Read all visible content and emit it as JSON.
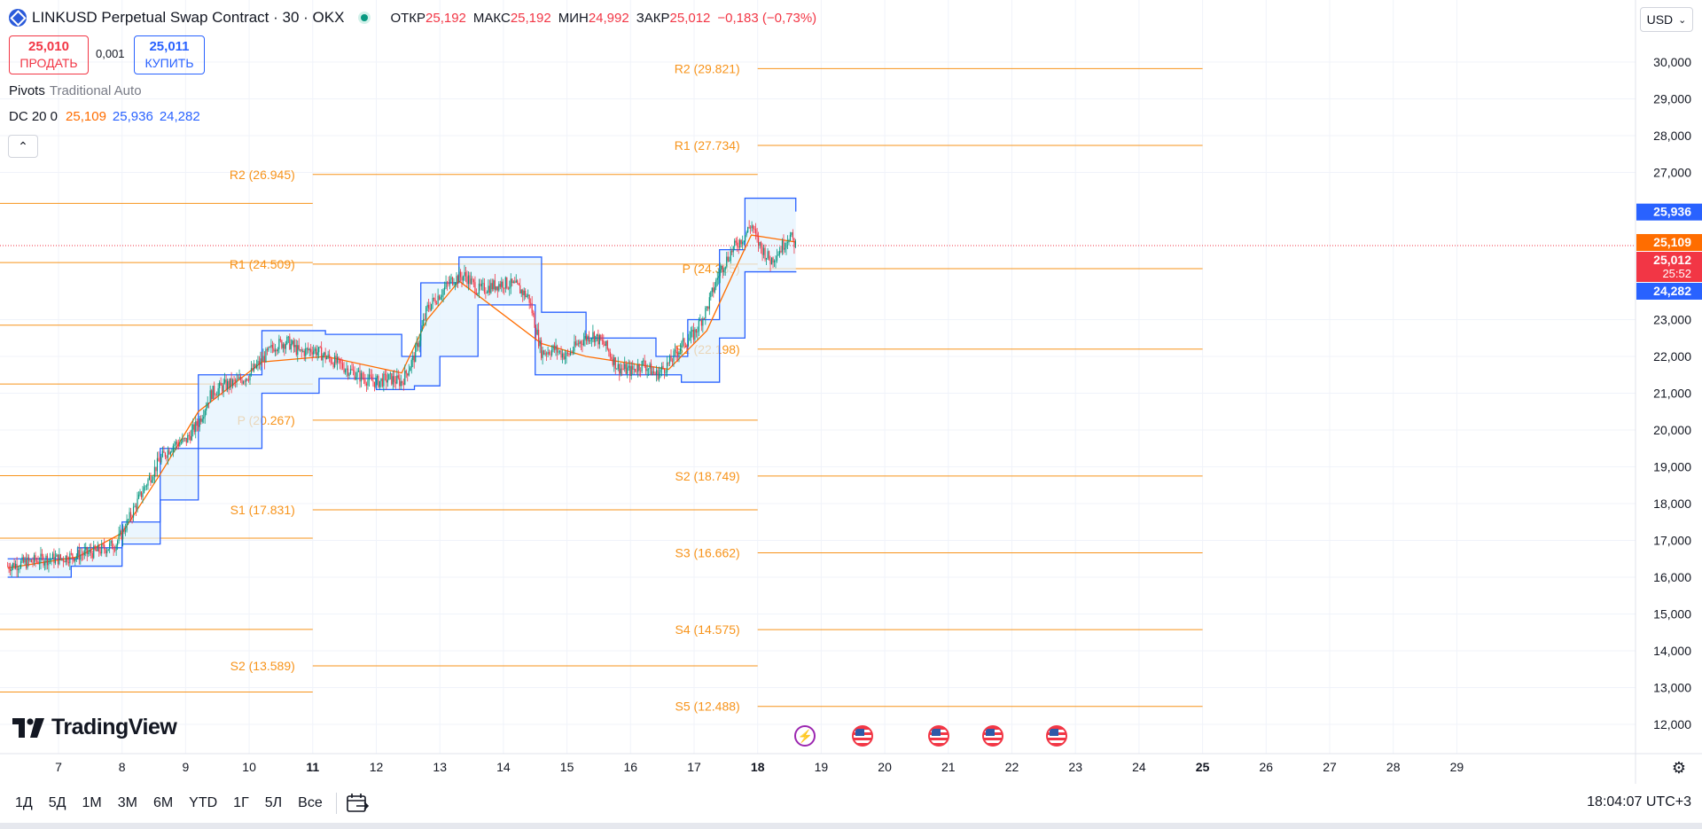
{
  "header": {
    "symbol": "LINKUSD Perpetual Swap Contract · 30 · OKX",
    "open_label": "ОТКР",
    "open": "25,192",
    "high_label": "МАКС",
    "high": "25,192",
    "low_label": "МИН",
    "low": "24,992",
    "close_label": "ЗАКР",
    "close": "25,012",
    "change": "−0,183 (−0,73%)"
  },
  "trade": {
    "sell_price": "25,010",
    "sell_label": "ПРОДАТЬ",
    "spread": "0,001",
    "buy_price": "25,011",
    "buy_label": "КУПИТЬ"
  },
  "indicators": {
    "pivots_name": "Pivots",
    "pivots_params": "Traditional Auto",
    "dc_name": "DC 20 0",
    "dc_mid": "25,109",
    "dc_upper": "25,936",
    "dc_lower": "24,282"
  },
  "currency": "USD",
  "logo_text": "TradingView",
  "ranges": [
    "1Д",
    "5Д",
    "1М",
    "3М",
    "6М",
    "YTD",
    "1Г",
    "5Л",
    "Все"
  ],
  "clock": "18:04:07 UTC+3",
  "colors": {
    "up": "#089981",
    "down": "#f23645",
    "pivot": "#f7931a",
    "channel": "#2962ff",
    "mid": "#ff6d00",
    "fill": "#e3f2fd"
  },
  "chart_data": {
    "type": "line",
    "title": "LINKUSD Perpetual Swap Contract · 30 · OKX",
    "y_range": [
      11.5,
      30.6
    ],
    "y_ticks": [
      {
        "v": 30,
        "t": "30,000"
      },
      {
        "v": 29,
        "t": "29,000"
      },
      {
        "v": 28,
        "t": "28,000"
      },
      {
        "v": 27,
        "t": "27,000"
      },
      {
        "v": 23,
        "t": "23,000"
      },
      {
        "v": 22,
        "t": "22,000"
      },
      {
        "v": 21,
        "t": "21,000"
      },
      {
        "v": 20,
        "t": "20,000"
      },
      {
        "v": 19,
        "t": "19,000"
      },
      {
        "v": 18,
        "t": "18,000"
      },
      {
        "v": 17,
        "t": "17,000"
      },
      {
        "v": 16,
        "t": "16,000"
      },
      {
        "v": 15,
        "t": "15,000"
      },
      {
        "v": 14,
        "t": "14,000"
      },
      {
        "v": 13,
        "t": "13,000"
      },
      {
        "v": 12,
        "t": "12,000"
      }
    ],
    "x_ticks": [
      {
        "d": 7,
        "t": "7",
        "bold": false
      },
      {
        "d": 8,
        "t": "8",
        "bold": false
      },
      {
        "d": 9,
        "t": "9",
        "bold": false
      },
      {
        "d": 10,
        "t": "10",
        "bold": false
      },
      {
        "d": 11,
        "t": "11",
        "bold": true
      },
      {
        "d": 12,
        "t": "12",
        "bold": false
      },
      {
        "d": 13,
        "t": "13",
        "bold": false
      },
      {
        "d": 14,
        "t": "14",
        "bold": false
      },
      {
        "d": 15,
        "t": "15",
        "bold": false
      },
      {
        "d": 16,
        "t": "16",
        "bold": false
      },
      {
        "d": 17,
        "t": "17",
        "bold": false
      },
      {
        "d": 18,
        "t": "18",
        "bold": true
      },
      {
        "d": 19,
        "t": "19",
        "bold": false
      },
      {
        "d": 20,
        "t": "20",
        "bold": false
      },
      {
        "d": 21,
        "t": "21",
        "bold": false
      },
      {
        "d": 22,
        "t": "22",
        "bold": false
      },
      {
        "d": 23,
        "t": "23",
        "bold": false
      },
      {
        "d": 24,
        "t": "24",
        "bold": false
      },
      {
        "d": 25,
        "t": "25",
        "bold": true
      },
      {
        "d": 26,
        "t": "26",
        "bold": false
      },
      {
        "d": 27,
        "t": "27",
        "bold": false
      },
      {
        "d": 28,
        "t": "28",
        "bold": false
      },
      {
        "d": 29,
        "t": "29",
        "bold": false
      }
    ],
    "price_series": [
      [
        6.2,
        16.3
      ],
      [
        6.5,
        16.4
      ],
      [
        6.8,
        16.5
      ],
      [
        7.0,
        16.5
      ],
      [
        7.3,
        16.6
      ],
      [
        7.6,
        16.7
      ],
      [
        7.9,
        16.9
      ],
      [
        8.0,
        17.2
      ],
      [
        8.2,
        17.9
      ],
      [
        8.4,
        18.6
      ],
      [
        8.6,
        19.2
      ],
      [
        8.8,
        19.6
      ],
      [
        9.0,
        19.7
      ],
      [
        9.2,
        20.2
      ],
      [
        9.4,
        21.0
      ],
      [
        9.6,
        21.2
      ],
      [
        9.8,
        21.3
      ],
      [
        10.0,
        21.5
      ],
      [
        10.2,
        21.9
      ],
      [
        10.4,
        22.3
      ],
      [
        10.6,
        22.4
      ],
      [
        10.8,
        22.1
      ],
      [
        11.0,
        22.2
      ],
      [
        11.2,
        22.0
      ],
      [
        11.4,
        21.8
      ],
      [
        11.6,
        21.6
      ],
      [
        11.8,
        21.4
      ],
      [
        12.0,
        21.3
      ],
      [
        12.2,
        21.4
      ],
      [
        12.4,
        21.3
      ],
      [
        12.6,
        22.0
      ],
      [
        12.8,
        23.3
      ],
      [
        13.0,
        23.7
      ],
      [
        13.2,
        24.1
      ],
      [
        13.4,
        24.2
      ],
      [
        13.6,
        23.8
      ],
      [
        13.8,
        23.9
      ],
      [
        14.0,
        24.0
      ],
      [
        14.2,
        23.9
      ],
      [
        14.4,
        23.6
      ],
      [
        14.6,
        22.1
      ],
      [
        14.8,
        22.2
      ],
      [
        15.0,
        22.0
      ],
      [
        15.2,
        22.4
      ],
      [
        15.4,
        22.6
      ],
      [
        15.6,
        22.3
      ],
      [
        15.8,
        21.7
      ],
      [
        16.0,
        21.6
      ],
      [
        16.2,
        21.8
      ],
      [
        16.4,
        21.5
      ],
      [
        16.6,
        21.8
      ],
      [
        16.8,
        22.3
      ],
      [
        17.0,
        22.6
      ],
      [
        17.2,
        23.3
      ],
      [
        17.4,
        24.3
      ],
      [
        17.6,
        24.9
      ],
      [
        17.8,
        25.3
      ],
      [
        17.9,
        25.6
      ],
      [
        18.0,
        25.1
      ],
      [
        18.2,
        24.6
      ],
      [
        18.35,
        24.9
      ],
      [
        18.5,
        25.3
      ],
      [
        18.6,
        25.012
      ]
    ],
    "donchian_upper": [
      [
        6.2,
        16.5
      ],
      [
        7.3,
        16.8
      ],
      [
        8.0,
        17.5
      ],
      [
        8.6,
        19.5
      ],
      [
        9.2,
        21.5
      ],
      [
        10.2,
        22.7
      ],
      [
        11.2,
        22.6
      ],
      [
        12.4,
        22.0
      ],
      [
        12.7,
        24.0
      ],
      [
        13.3,
        24.7
      ],
      [
        14.6,
        23.2
      ],
      [
        15.3,
        22.5
      ],
      [
        16.4,
        22.0
      ],
      [
        16.9,
        23.0
      ],
      [
        17.4,
        24.9
      ],
      [
        17.8,
        26.3
      ],
      [
        18.6,
        25.936
      ]
    ],
    "donchian_lower": [
      [
        6.2,
        16.0
      ],
      [
        7.2,
        16.3
      ],
      [
        8.0,
        16.9
      ],
      [
        8.6,
        18.1
      ],
      [
        9.2,
        19.5
      ],
      [
        10.2,
        21.0
      ],
      [
        11.1,
        21.4
      ],
      [
        12.0,
        21.1
      ],
      [
        12.6,
        21.2
      ],
      [
        13.0,
        22.0
      ],
      [
        13.6,
        23.4
      ],
      [
        14.5,
        21.5
      ],
      [
        15.3,
        21.5
      ],
      [
        16.8,
        21.3
      ],
      [
        17.4,
        22.5
      ],
      [
        17.8,
        24.3
      ],
      [
        18.6,
        24.282
      ]
    ],
    "donchian_mid": [
      [
        6.2,
        16.25
      ],
      [
        7.3,
        16.55
      ],
      [
        8.0,
        17.2
      ],
      [
        8.6,
        18.8
      ],
      [
        9.2,
        20.5
      ],
      [
        10.2,
        21.85
      ],
      [
        11.2,
        22.0
      ],
      [
        12.4,
        21.55
      ],
      [
        12.8,
        23.0
      ],
      [
        13.3,
        24.05
      ],
      [
        14.6,
        22.35
      ],
      [
        15.3,
        22.0
      ],
      [
        16.6,
        21.65
      ],
      [
        17.2,
        22.7
      ],
      [
        17.6,
        24.2
      ],
      [
        17.9,
        25.3
      ],
      [
        18.6,
        25.109
      ]
    ],
    "pivot_levels": [
      {
        "label": "R2 (29.821)",
        "y": 29.821,
        "x0": 18,
        "x1": 25
      },
      {
        "label": "R1 (27.734)",
        "y": 27.734,
        "x0": 18,
        "x1": 25
      },
      {
        "label": "P (24.385)",
        "y": 24.385,
        "x0": 18,
        "x1": 25
      },
      {
        "label": "S1 (22.198)",
        "y": 22.198,
        "x0": 18,
        "x1": 25
      },
      {
        "label": "S2 (18.749)",
        "y": 18.749,
        "x0": 18,
        "x1": 25
      },
      {
        "label": "S3 (16.662)",
        "y": 16.662,
        "x0": 18,
        "x1": 25
      },
      {
        "label": "S4 (14.575)",
        "y": 14.575,
        "x0": 18,
        "x1": 25
      },
      {
        "label": "S5 (12.488)",
        "y": 12.488,
        "x0": 18,
        "x1": 25
      },
      {
        "label": "R2 (26.945)",
        "y": 26.945,
        "x0": 11,
        "x1": 18
      },
      {
        "label": "R1 (24.509)",
        "y": 24.509,
        "x0": 11,
        "x1": 18
      },
      {
        "label": "P (20.267)",
        "y": 20.267,
        "x0": 11,
        "x1": 18
      },
      {
        "label": "S1 (17.831)",
        "y": 17.831,
        "x0": 11,
        "x1": 18
      },
      {
        "label": "S2 (13.589)",
        "y": 13.589,
        "x0": 11,
        "x1": 18
      }
    ],
    "previous_pivot_lines": [
      {
        "y": 26.16,
        "x0": 6,
        "x1": 11
      },
      {
        "y": 24.55,
        "x0": 6,
        "x1": 11
      },
      {
        "y": 22.85,
        "x0": 6,
        "x1": 11
      },
      {
        "y": 21.25,
        "x0": 6,
        "x1": 11
      },
      {
        "y": 18.76,
        "x0": 6,
        "x1": 11
      },
      {
        "y": 17.06,
        "x0": 6,
        "x1": 11
      },
      {
        "y": 14.58,
        "x0": 6,
        "x1": 11
      },
      {
        "y": 12.88,
        "x0": 6,
        "x1": 11
      }
    ],
    "price_labels": [
      {
        "text": "25,936",
        "v": 25.936,
        "color": "#2962ff"
      },
      {
        "text": "25,109",
        "v": 25.109,
        "color": "#ff6d00"
      },
      {
        "text": "25,012",
        "sub": "25:52",
        "v": 25.012,
        "color": "#f23645"
      },
      {
        "text": "24,282",
        "v": 24.282,
        "color": "#2962ff"
      }
    ],
    "last_price": 25.012,
    "events": [
      {
        "d": 18.75,
        "kind": "flash"
      },
      {
        "d": 19.65,
        "kind": "us"
      },
      {
        "d": 20.85,
        "kind": "us"
      },
      {
        "d": 21.7,
        "kind": "us"
      },
      {
        "d": 22.7,
        "kind": "us"
      }
    ]
  }
}
